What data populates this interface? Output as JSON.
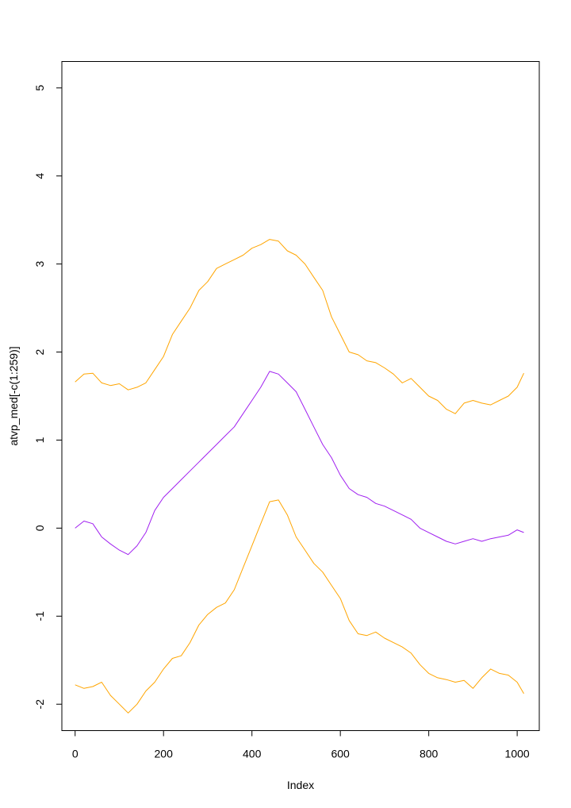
{
  "chart_data": {
    "type": "line",
    "title": "",
    "xlabel": "Index",
    "ylabel": "atvp_med[-c(1:259)]",
    "xlim": [
      -30,
      1050
    ],
    "ylim": [
      -2.3,
      5.3
    ],
    "x_ticks": [
      0,
      200,
      400,
      600,
      800,
      1000
    ],
    "x_tick_labels": [
      "0",
      "200",
      "400",
      "600",
      "800",
      "1000"
    ],
    "y_ticks": [
      -2,
      -1,
      0,
      1,
      2,
      3,
      4,
      5
    ],
    "y_tick_labels": [
      "-2",
      "-1",
      "0",
      "1",
      "2",
      "3",
      "4",
      "5"
    ],
    "grid": false,
    "legend": "none",
    "colors": {
      "orange": "#FFA500",
      "purple": "#A020F0"
    },
    "series": [
      {
        "color": "#FFA500",
        "x": [
          0,
          20,
          40,
          60,
          80,
          100,
          120,
          140,
          160,
          180,
          200,
          220,
          240,
          260,
          280,
          300,
          320,
          340,
          360,
          380,
          400,
          420,
          440,
          460,
          480,
          500,
          520,
          540,
          560,
          580,
          600,
          620,
          640,
          660,
          680,
          700,
          720,
          740,
          760,
          780,
          800,
          820,
          840,
          860,
          880,
          900,
          920,
          940,
          960,
          980,
          1000,
          1015
        ],
        "y": [
          1.66,
          1.75,
          1.76,
          1.65,
          1.62,
          1.64,
          1.57,
          1.6,
          1.65,
          1.8,
          1.95,
          2.2,
          2.35,
          2.5,
          2.7,
          2.8,
          2.95,
          3.0,
          3.05,
          3.1,
          3.18,
          3.22,
          3.28,
          3.26,
          3.15,
          3.1,
          3.0,
          2.85,
          2.7,
          2.4,
          2.2,
          2.0,
          1.97,
          1.9,
          1.88,
          1.82,
          1.75,
          1.65,
          1.7,
          1.6,
          1.5,
          1.45,
          1.35,
          1.3,
          1.42,
          1.45,
          1.42,
          1.4,
          1.45,
          1.5,
          1.6,
          1.76
        ]
      },
      {
        "color": "#A020F0",
        "x": [
          0,
          20,
          40,
          60,
          80,
          100,
          120,
          140,
          160,
          180,
          200,
          220,
          240,
          260,
          280,
          300,
          320,
          340,
          360,
          380,
          400,
          420,
          440,
          460,
          480,
          500,
          520,
          540,
          560,
          580,
          600,
          620,
          640,
          660,
          680,
          700,
          720,
          740,
          760,
          780,
          800,
          820,
          840,
          860,
          880,
          900,
          920,
          940,
          960,
          980,
          1000,
          1015
        ],
        "y": [
          0.0,
          0.08,
          0.05,
          -0.1,
          -0.18,
          -0.25,
          -0.3,
          -0.2,
          -0.05,
          0.2,
          0.35,
          0.45,
          0.55,
          0.65,
          0.75,
          0.85,
          0.95,
          1.05,
          1.15,
          1.3,
          1.45,
          1.6,
          1.78,
          1.75,
          1.65,
          1.55,
          1.35,
          1.15,
          0.95,
          0.8,
          0.6,
          0.45,
          0.38,
          0.35,
          0.28,
          0.25,
          0.2,
          0.15,
          0.1,
          0.0,
          -0.05,
          -0.1,
          -0.15,
          -0.18,
          -0.15,
          -0.12,
          -0.15,
          -0.12,
          -0.1,
          -0.08,
          -0.02,
          -0.05
        ]
      },
      {
        "color": "#FFA500",
        "x": [
          0,
          20,
          40,
          60,
          80,
          100,
          120,
          140,
          160,
          180,
          200,
          220,
          240,
          260,
          280,
          300,
          320,
          340,
          360,
          380,
          400,
          420,
          440,
          460,
          480,
          500,
          520,
          540,
          560,
          580,
          600,
          620,
          640,
          660,
          680,
          700,
          720,
          740,
          760,
          780,
          800,
          820,
          840,
          860,
          880,
          900,
          920,
          940,
          960,
          980,
          1000,
          1015
        ],
        "y": [
          -1.78,
          -1.82,
          -1.8,
          -1.75,
          -1.9,
          -2.0,
          -2.1,
          -2.0,
          -1.85,
          -1.75,
          -1.6,
          -1.48,
          -1.45,
          -1.3,
          -1.1,
          -0.98,
          -0.9,
          -0.85,
          -0.7,
          -0.45,
          -0.2,
          0.05,
          0.3,
          0.32,
          0.15,
          -0.1,
          -0.25,
          -0.4,
          -0.5,
          -0.65,
          -0.8,
          -1.05,
          -1.2,
          -1.22,
          -1.18,
          -1.25,
          -1.3,
          -1.35,
          -1.42,
          -1.55,
          -1.65,
          -1.7,
          -1.72,
          -1.75,
          -1.73,
          -1.82,
          -1.7,
          -1.6,
          -1.65,
          -1.67,
          -1.75,
          -1.88
        ]
      }
    ]
  }
}
